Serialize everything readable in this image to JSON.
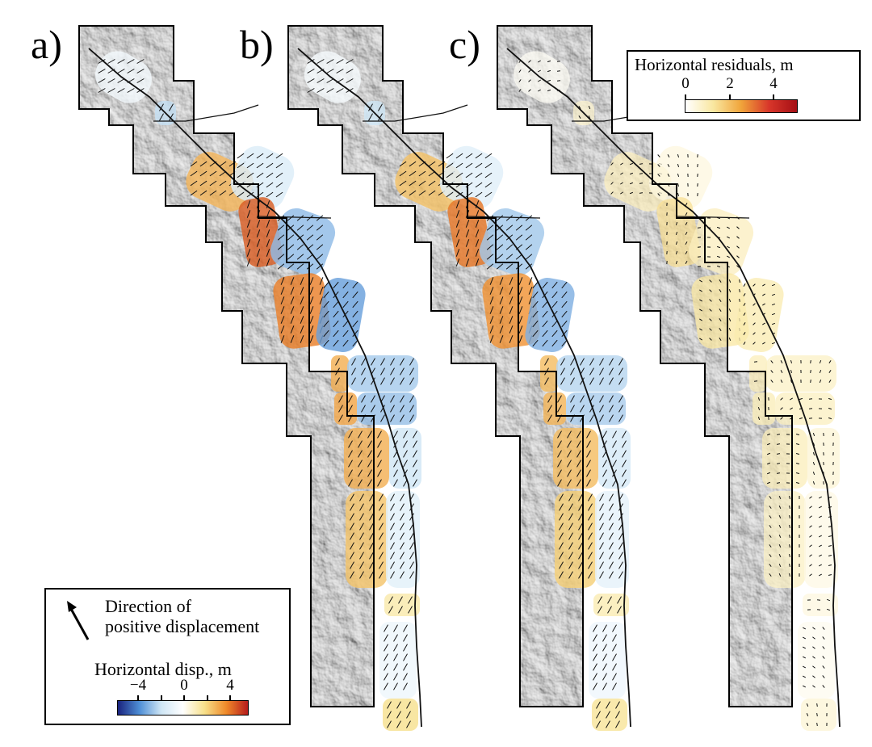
{
  "panels": [
    {
      "label": "a)",
      "fill": "disp"
    },
    {
      "label": "b)",
      "fill": "disp_model"
    },
    {
      "label": "c)",
      "fill": "residual"
    }
  ],
  "residual_legend": {
    "title": "Horizontal residuals, m",
    "ticks": [
      "0",
      "2",
      "4"
    ],
    "colors": [
      "#ffffff",
      "#f9e7a0",
      "#f0a43a",
      "#d8362a",
      "#a50f15"
    ]
  },
  "disp_legend": {
    "direction_text_line1": "Direction of",
    "direction_text_line2": "positive displacement",
    "title": "Horizontal disp., m",
    "ticks": [
      "−4",
      "0",
      "4"
    ],
    "colors": [
      "#1a237e",
      "#4f8fd6",
      "#cfe6f5",
      "#ffffff",
      "#f7e08a",
      "#ef8a2a",
      "#b71c1c"
    ]
  },
  "colors": {
    "hillshade": "#9a9a9a",
    "hillshade_light": "#d2d2d2",
    "fault": "#111111",
    "frame": "#000000"
  }
}
